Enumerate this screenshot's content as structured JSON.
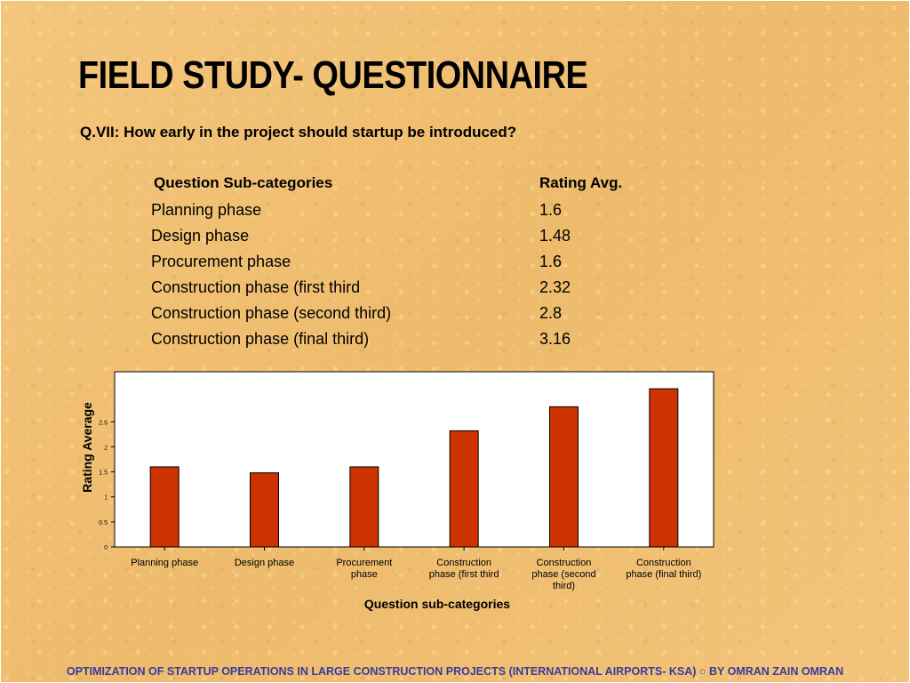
{
  "slide": {
    "title": "FIELD STUDY- QUESTIONNAIRE",
    "question": "Q.VII: How early in the project should startup be introduced?",
    "footer": "OPTIMIZATION OF STARTUP OPERATIONS IN LARGE CONSTRUCTION  PROJECTS (INTERNATIONAL AIRPORTS- KSA) ○ BY OMRAN ZAIN OMRAN"
  },
  "table": {
    "headers": [
      "Question Sub-categories",
      "Rating Avg."
    ],
    "rows": [
      [
        "Planning phase",
        "1.6"
      ],
      [
        "Design phase",
        "1.48"
      ],
      [
        "Procurement phase",
        "1.6"
      ],
      [
        "Construction phase (first third",
        "2.32"
      ],
      [
        "Construction phase (second third)",
        "2.8"
      ],
      [
        "Construction phase (final third)",
        "3.16"
      ]
    ]
  },
  "chart_data": {
    "type": "bar",
    "categories": [
      "Planning phase",
      "Design phase",
      "Procurement phase",
      "Construction phase (first third",
      "Construction phase (second third)",
      "Construction phase (final third)"
    ],
    "category_lines": [
      [
        "Planning phase"
      ],
      [
        "Design phase"
      ],
      [
        "Procurement",
        "phase"
      ],
      [
        "Construction",
        "phase (first third"
      ],
      [
        "Construction",
        "phase (second",
        "third)"
      ],
      [
        "Construction",
        "phase (final third)"
      ]
    ],
    "values": [
      1.6,
      1.48,
      1.6,
      2.32,
      2.8,
      3.16
    ],
    "xlabel": "Question sub-categories",
    "ylabel": "Rating Average",
    "ylim": [
      0,
      3.5
    ],
    "yticks": [
      "0",
      "0.5",
      "1",
      "1.5",
      "2",
      "2.5"
    ],
    "ytick_values": [
      0,
      0.5,
      1,
      1.5,
      2,
      2.5
    ],
    "bar_color": "#cc3300",
    "bar_outline": "#000000",
    "plot_background": "#ffffff",
    "grid": false,
    "legend": "none"
  }
}
